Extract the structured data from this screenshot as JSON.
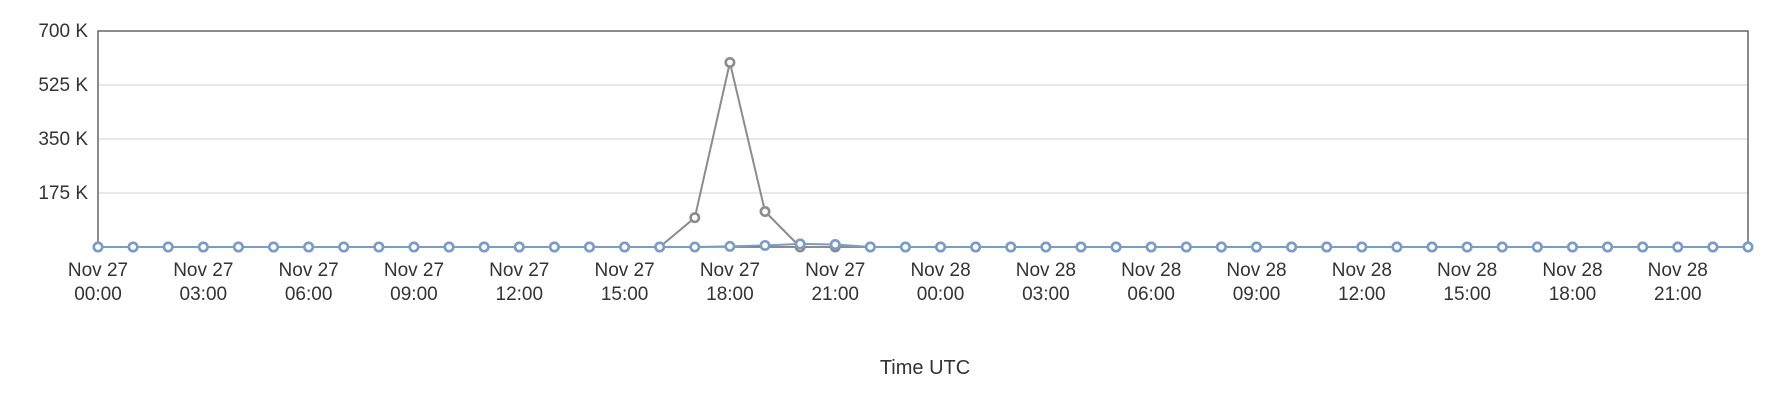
{
  "chart_data": {
    "type": "line",
    "xlabel": "Time UTC",
    "ylabel": "",
    "ylim": [
      0,
      700000
    ],
    "y_ticks": [
      {
        "value": 175000,
        "label": "175 K"
      },
      {
        "value": 350000,
        "label": "350 K"
      },
      {
        "value": 525000,
        "label": "525 K"
      },
      {
        "value": 700000,
        "label": "700 K"
      }
    ],
    "x_ticks": [
      {
        "hour": 0,
        "line1": "Nov 27",
        "line2": "00:00"
      },
      {
        "hour": 3,
        "line1": "Nov 27",
        "line2": "03:00"
      },
      {
        "hour": 6,
        "line1": "Nov 27",
        "line2": "06:00"
      },
      {
        "hour": 9,
        "line1": "Nov 27",
        "line2": "09:00"
      },
      {
        "hour": 12,
        "line1": "Nov 27",
        "line2": "12:00"
      },
      {
        "hour": 15,
        "line1": "Nov 27",
        "line2": "15:00"
      },
      {
        "hour": 18,
        "line1": "Nov 27",
        "line2": "18:00"
      },
      {
        "hour": 21,
        "line1": "Nov 27",
        "line2": "21:00"
      },
      {
        "hour": 24,
        "line1": "Nov 28",
        "line2": "00:00"
      },
      {
        "hour": 27,
        "line1": "Nov 28",
        "line2": "03:00"
      },
      {
        "hour": 30,
        "line1": "Nov 28",
        "line2": "06:00"
      },
      {
        "hour": 33,
        "line1": "Nov 28",
        "line2": "09:00"
      },
      {
        "hour": 36,
        "line1": "Nov 28",
        "line2": "12:00"
      },
      {
        "hour": 39,
        "line1": "Nov 28",
        "line2": "15:00"
      },
      {
        "hour": 42,
        "line1": "Nov 28",
        "line2": "18:00"
      },
      {
        "hour": 45,
        "line1": "Nov 28",
        "line2": "21:00"
      }
    ],
    "x_hours": [
      0,
      1,
      2,
      3,
      4,
      5,
      6,
      7,
      8,
      9,
      10,
      11,
      12,
      13,
      14,
      15,
      16,
      17,
      18,
      19,
      20,
      21,
      22,
      23,
      24,
      25,
      26,
      27,
      28,
      29,
      30,
      31,
      32,
      33,
      34,
      35,
      36,
      37,
      38,
      39,
      40,
      41,
      42,
      43,
      44,
      45,
      46,
      47
    ],
    "series": [
      {
        "color": "#8c8c8c",
        "values": [
          0,
          0,
          0,
          0,
          0,
          0,
          0,
          0,
          0,
          0,
          0,
          0,
          0,
          0,
          0,
          0,
          0,
          95000,
          598000,
          115000,
          0,
          0,
          0,
          0,
          0,
          0,
          0,
          0,
          0,
          0,
          0,
          0,
          0,
          0,
          0,
          0,
          0,
          0,
          0,
          0,
          0,
          0,
          0,
          0,
          0,
          0,
          0,
          0
        ]
      },
      {
        "color": "#7b9cc4",
        "values": [
          0,
          0,
          0,
          0,
          0,
          0,
          0,
          0,
          0,
          0,
          0,
          0,
          0,
          0,
          0,
          0,
          0,
          0,
          2000,
          5000,
          10000,
          8000,
          0,
          0,
          0,
          0,
          0,
          0,
          0,
          0,
          0,
          0,
          0,
          0,
          0,
          0,
          0,
          0,
          0,
          0,
          0,
          0,
          0,
          0,
          0,
          0,
          0,
          0
        ]
      }
    ]
  }
}
